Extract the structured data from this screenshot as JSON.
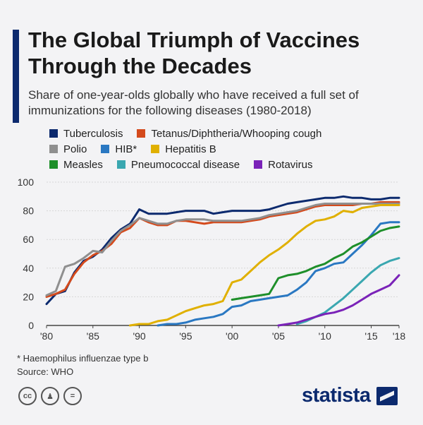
{
  "title": "The Global Triumph of Vaccines Through the Decades",
  "subtitle": "Share of one-year-olds globally who have received a full set of immunizations for the following diseases (1980-2018)",
  "footnote": "* Haemophilus influenzae type b",
  "source": "Source: WHO",
  "brand": "statista",
  "chart_data": {
    "type": "line",
    "xlim": [
      1980,
      2018
    ],
    "ylim": [
      0,
      100
    ],
    "x_ticks": [
      1980,
      1985,
      1990,
      1995,
      2000,
      2005,
      2010,
      2015,
      2018
    ],
    "x_tick_labels": [
      "'80",
      "'85",
      "'90",
      "'95",
      "'00",
      "'05",
      "'10",
      "'15",
      "'18"
    ],
    "y_ticks": [
      0,
      20,
      40,
      60,
      80,
      100
    ],
    "y_tick_labels": [
      "0",
      "20",
      "40",
      "60",
      "80",
      "100"
    ],
    "grid": true,
    "legend_position": "top",
    "series": [
      {
        "name": "Tuberculosis",
        "color": "#0c2a6e",
        "x": [
          1980,
          1981,
          1982,
          1983,
          1984,
          1985,
          1986,
          1987,
          1988,
          1989,
          1990,
          1991,
          1992,
          1993,
          1994,
          1995,
          1996,
          1997,
          1998,
          1999,
          2000,
          2001,
          2002,
          2003,
          2004,
          2005,
          2006,
          2007,
          2008,
          2009,
          2010,
          2011,
          2012,
          2013,
          2014,
          2015,
          2016,
          2017,
          2018
        ],
        "values": [
          15,
          22,
          24,
          37,
          45,
          48,
          53,
          61,
          67,
          71,
          81,
          78,
          78,
          78,
          79,
          80,
          80,
          80,
          78,
          79,
          80,
          80,
          80,
          80,
          81,
          83,
          85,
          86,
          87,
          88,
          89,
          89,
          90,
          89,
          89,
          88,
          88,
          89,
          89
        ]
      },
      {
        "name": "Tetanus/Diphtheria/Whooping cough",
        "color": "#d44a1c",
        "x": [
          1980,
          1981,
          1982,
          1983,
          1984,
          1985,
          1986,
          1987,
          1988,
          1989,
          1990,
          1991,
          1992,
          1993,
          1994,
          1995,
          1996,
          1997,
          1998,
          1999,
          2000,
          2001,
          2002,
          2003,
          2004,
          2005,
          2006,
          2007,
          2008,
          2009,
          2010,
          2011,
          2012,
          2013,
          2014,
          2015,
          2016,
          2017,
          2018
        ],
        "values": [
          20,
          22,
          25,
          36,
          44,
          49,
          52,
          57,
          65,
          68,
          75,
          72,
          70,
          70,
          73,
          73,
          72,
          71,
          72,
          72,
          72,
          72,
          73,
          74,
          76,
          77,
          78,
          79,
          81,
          83,
          84,
          84,
          84,
          84,
          85,
          85,
          86,
          86,
          86
        ]
      },
      {
        "name": "Polio",
        "color": "#8f8f8f",
        "x": [
          1980,
          1981,
          1982,
          1983,
          1984,
          1985,
          1986,
          1987,
          1988,
          1989,
          1990,
          1991,
          1992,
          1993,
          1994,
          1995,
          1996,
          1997,
          1998,
          1999,
          2000,
          2001,
          2002,
          2003,
          2004,
          2005,
          2006,
          2007,
          2008,
          2009,
          2010,
          2011,
          2012,
          2013,
          2014,
          2015,
          2016,
          2017,
          2018
        ],
        "values": [
          21,
          24,
          41,
          43,
          47,
          52,
          51,
          59,
          66,
          70,
          75,
          73,
          71,
          71,
          73,
          74,
          74,
          74,
          73,
          73,
          73,
          73,
          74,
          75,
          77,
          78,
          79,
          80,
          82,
          84,
          85,
          85,
          85,
          85,
          85,
          85,
          85,
          85,
          85
        ]
      },
      {
        "name": "HIB*",
        "color": "#2a78c2",
        "x": [
          1992,
          1993,
          1994,
          1995,
          1996,
          1997,
          1998,
          1999,
          2000,
          2001,
          2002,
          2003,
          2004,
          2005,
          2006,
          2007,
          2008,
          2009,
          2010,
          2011,
          2012,
          2013,
          2014,
          2015,
          2016,
          2017,
          2018
        ],
        "values": [
          0,
          1,
          1,
          2,
          4,
          5,
          6,
          8,
          13,
          14,
          17,
          18,
          19,
          20,
          21,
          25,
          30,
          38,
          40,
          43,
          44,
          50,
          56,
          63,
          71,
          72,
          72
        ]
      },
      {
        "name": "Hepatitis B",
        "color": "#e0b000",
        "x": [
          1989,
          1990,
          1991,
          1992,
          1993,
          1994,
          1995,
          1996,
          1997,
          1998,
          1999,
          2000,
          2001,
          2002,
          2003,
          2004,
          2005,
          2006,
          2007,
          2008,
          2009,
          2010,
          2011,
          2012,
          2013,
          2014,
          2015,
          2016,
          2017,
          2018
        ],
        "values": [
          0,
          1,
          1,
          3,
          4,
          7,
          10,
          12,
          14,
          15,
          17,
          30,
          32,
          38,
          44,
          49,
          53,
          58,
          64,
          69,
          73,
          74,
          76,
          80,
          79,
          82,
          83,
          84,
          84,
          84
        ]
      },
      {
        "name": "Measles",
        "color": "#1e8f2a",
        "x": [
          2000,
          2001,
          2002,
          2003,
          2004,
          2005,
          2006,
          2007,
          2008,
          2009,
          2010,
          2011,
          2012,
          2013,
          2014,
          2015,
          2016,
          2017,
          2018
        ],
        "values": [
          18,
          19,
          20,
          21,
          22,
          33,
          35,
          36,
          38,
          41,
          43,
          47,
          50,
          55,
          58,
          62,
          66,
          68,
          69
        ]
      },
      {
        "name": "Pneumococcal disease",
        "color": "#3aa7b0",
        "x": [
          2007,
          2008,
          2009,
          2010,
          2011,
          2012,
          2013,
          2014,
          2015,
          2016,
          2017,
          2018
        ],
        "values": [
          1,
          3,
          6,
          9,
          14,
          19,
          25,
          31,
          37,
          42,
          45,
          47
        ]
      },
      {
        "name": "Rotavirus",
        "color": "#7a22b8",
        "x": [
          2005,
          2006,
          2007,
          2008,
          2009,
          2010,
          2011,
          2012,
          2013,
          2014,
          2015,
          2016,
          2017,
          2018
        ],
        "values": [
          0,
          1,
          2,
          4,
          6,
          8,
          9,
          11,
          14,
          18,
          22,
          25,
          28,
          35
        ]
      }
    ]
  }
}
